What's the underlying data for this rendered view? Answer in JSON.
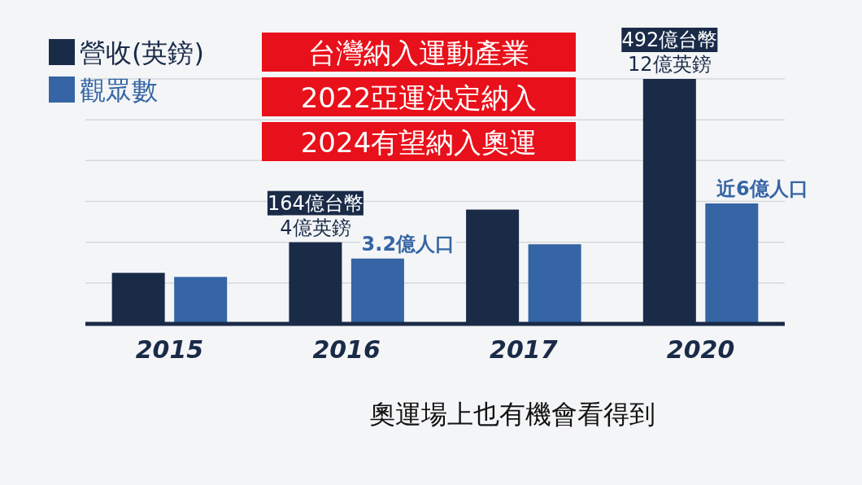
{
  "chart_data": {
    "type": "bar",
    "title": "台灣納入運動產業",
    "subtitle": "2022亞運決定納入",
    "annotations": [
      "2024有望納入奧運",
      "奧運場上也有機會看得到"
    ],
    "categories": [
      "2015",
      "2016",
      "2017",
      "2020"
    ],
    "series": [
      {
        "name": "營收(英鎊)",
        "color": "#1a2b48",
        "values": [
          2.5,
          4,
          5.6,
          12
        ],
        "value_labels": [
          null,
          "164億台幣\n4億英鎊",
          null,
          "492億台幣\n12億英鎊"
        ]
      },
      {
        "name": "觀眾數",
        "color": "#3565a5",
        "values": [
          2.3,
          3.2,
          3.9,
          5.9
        ],
        "value_labels": [
          null,
          "3.2億人口",
          null,
          "近6億人口"
        ]
      }
    ],
    "ylim": [
      0,
      12
    ],
    "yticks": [
      {
        "value": 2,
        "label": null
      },
      {
        "value": 4,
        "label": null
      },
      {
        "value": 6,
        "label": null
      },
      {
        "value": 8,
        "label": null
      },
      {
        "value": 10,
        "label": null
      },
      {
        "value": 12,
        "label": null
      }
    ],
    "tick_labels": "x",
    "grid": "y",
    "legend": "top left"
  }
}
